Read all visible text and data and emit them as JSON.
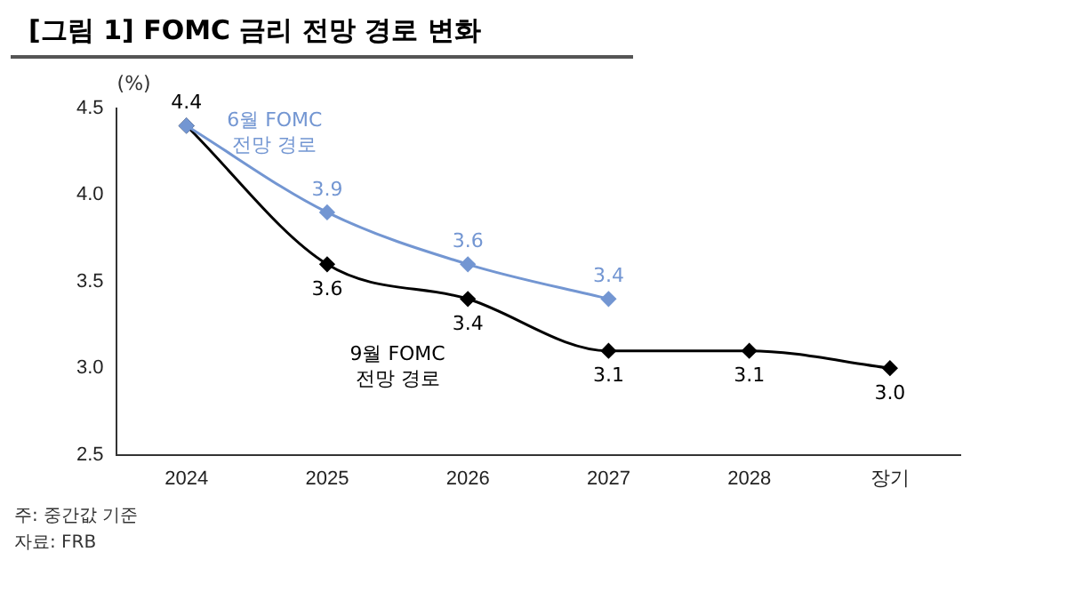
{
  "chart_data": {
    "type": "line",
    "title": "[그림 1] FOMC 금리 전망 경로 변화",
    "ylabel": "(%)",
    "categories": [
      "2024",
      "2025",
      "2026",
      "2027",
      "2028",
      "장기"
    ],
    "series": [
      {
        "name": "6월 FOMC 전망 경로",
        "color": "#7396d2",
        "values": [
          4.4,
          3.9,
          3.6,
          3.4,
          null,
          null
        ],
        "value_labels": [
          null,
          "3.9",
          "3.6",
          "3.4",
          null,
          null
        ]
      },
      {
        "name": "9월 FOMC 전망 경로",
        "color": "#000000",
        "values": [
          4.4,
          3.6,
          3.4,
          3.1,
          3.1,
          3.0
        ],
        "value_labels": [
          "4.4",
          "3.6",
          "3.4",
          "3.1",
          "3.1",
          "3.0"
        ]
      }
    ],
    "ylim": [
      2.5,
      4.5
    ],
    "yticks": [
      2.5,
      {
        "value": 3,
        "label": "3.0"
      },
      3.5,
      {
        "value": 4,
        "label": "4.0"
      },
      4.5
    ],
    "grid": false,
    "legend": false,
    "marker": "diamond",
    "line_style": "solid",
    "annotations": [
      "주: 중간값 기준",
      "자료: FRB"
    ]
  }
}
